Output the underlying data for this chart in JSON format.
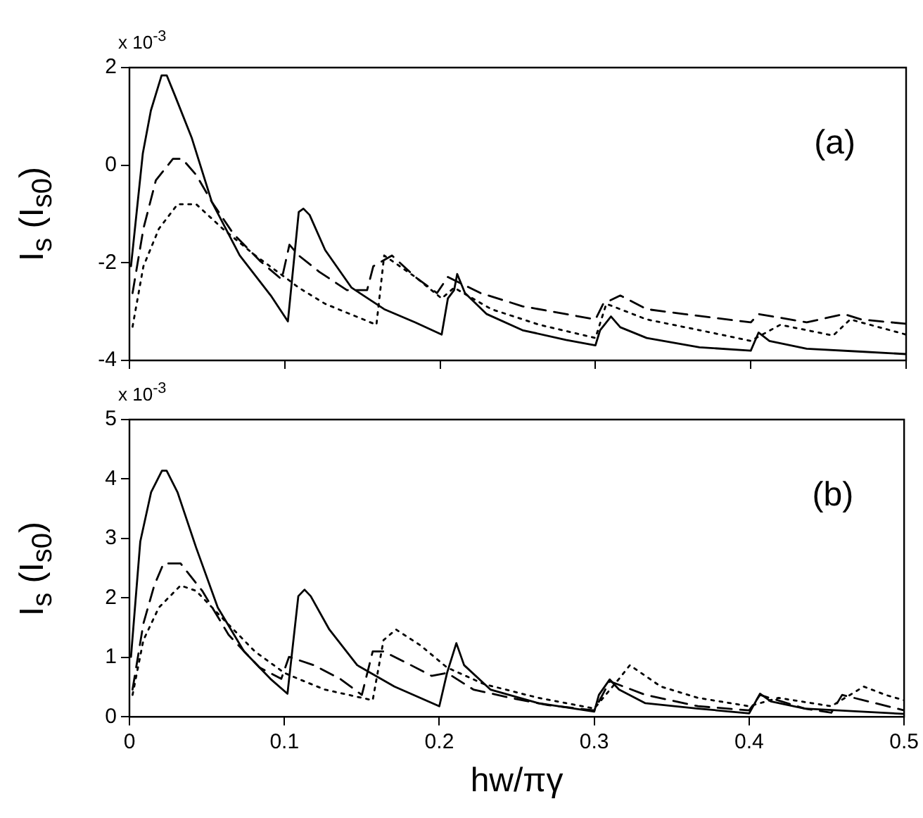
{
  "chart_data": [
    {
      "type": "line",
      "ylabel": "I$_{s}$ (I$_{s0}$)",
      "annotations": [
        "x 10$^{-3}$",
        "(a)"
      ],
      "xlim": [
        0,
        0.5
      ],
      "xticks": [
        0,
        0.1,
        0.2,
        0.3,
        0.4,
        0.5
      ],
      "ylim": [
        -4,
        2
      ],
      "yticks": [
        -4,
        -2,
        0,
        2
      ],
      "tick_labels": "y",
      "grid": false,
      "legend": false,
      "series": [
        {
          "color": "#000000",
          "line_style": "solid",
          "x": [
            0.001,
            0.0086,
            0.0138,
            0.0207,
            0.024,
            0.029,
            0.04,
            0.053,
            0.071,
            0.091,
            0.102,
            0.109,
            0.112,
            0.116,
            0.126,
            0.143,
            0.164,
            0.184,
            0.201,
            0.205,
            0.209,
            0.211,
            0.216,
            0.23,
            0.253,
            0.281,
            0.3,
            0.303,
            0.31,
            0.316,
            0.333,
            0.367,
            0.4,
            0.405,
            0.412,
            0.436,
            0.471,
            0.5
          ],
          "values": [
            -2.07,
            0.24,
            1.12,
            1.84,
            1.84,
            1.45,
            0.57,
            -0.75,
            -1.85,
            -2.67,
            -3.2,
            -0.96,
            -0.89,
            -1.02,
            -1.74,
            -2.51,
            -2.95,
            -3.22,
            -3.47,
            -2.73,
            -2.56,
            -2.23,
            -2.62,
            -3.05,
            -3.38,
            -3.58,
            -3.69,
            -3.38,
            -3.1,
            -3.32,
            -3.54,
            -3.73,
            -3.8,
            -3.43,
            -3.6,
            -3.76,
            -3.82,
            -3.87
          ]
        },
        {
          "color": "#000000",
          "line_style": "dashed",
          "x": [
            0.002,
            0.009,
            0.017,
            0.028,
            0.034,
            0.043,
            0.053,
            0.067,
            0.084,
            0.098,
            0.103,
            0.109,
            0.122,
            0.14,
            0.153,
            0.157,
            0.169,
            0.184,
            0.198,
            0.205,
            0.226,
            0.253,
            0.281,
            0.3,
            0.305,
            0.316,
            0.333,
            0.357,
            0.4,
            0.405,
            0.436,
            0.46,
            0.471,
            0.5
          ],
          "values": [
            -2.62,
            -1.3,
            -0.31,
            0.13,
            0.13,
            -0.2,
            -0.75,
            -1.41,
            -1.96,
            -2.34,
            -1.63,
            -1.85,
            -2.18,
            -2.56,
            -2.56,
            -2.07,
            -1.85,
            -2.29,
            -2.62,
            -2.29,
            -2.62,
            -2.89,
            -3.05,
            -3.16,
            -2.84,
            -2.67,
            -2.95,
            -3.05,
            -3.22,
            -3.05,
            -3.22,
            -3.05,
            -3.16,
            -3.25
          ]
        },
        {
          "color": "#000000",
          "line_style": "dotted",
          "x": [
            0.002,
            0.009,
            0.019,
            0.031,
            0.043,
            0.06,
            0.081,
            0.102,
            0.109,
            0.126,
            0.159,
            0.164,
            0.184,
            0.201,
            0.209,
            0.233,
            0.264,
            0.3,
            0.307,
            0.333,
            0.367,
            0.4,
            0.419,
            0.453,
            0.464,
            0.5
          ],
          "values": [
            -3.31,
            -2.07,
            -1.3,
            -0.8,
            -0.8,
            -1.3,
            -1.85,
            -2.34,
            -2.51,
            -2.84,
            -3.27,
            -1.85,
            -2.29,
            -2.73,
            -2.51,
            -2.95,
            -3.27,
            -3.54,
            -2.84,
            -3.16,
            -3.38,
            -3.6,
            -3.27,
            -3.49,
            -3.16,
            -3.47
          ]
        }
      ]
    },
    {
      "type": "line",
      "ylabel": "I$_{s}$ (I$_{s0}$)",
      "xlabel": "hw/πγ",
      "annotations": [
        "x 10$^{-3}$",
        "(b)"
      ],
      "xlim": [
        0,
        0.5
      ],
      "xticks": [
        0,
        0.1,
        0.2,
        0.3,
        0.4,
        0.5
      ],
      "ylim": [
        0,
        5
      ],
      "yticks": [
        0,
        1,
        2,
        3,
        4,
        5
      ],
      "grid": false,
      "legend": false,
      "series": [
        {
          "color": "#000000",
          "line_style": "solid",
          "x": [
            0.001,
            0.007,
            0.014,
            0.021,
            0.024,
            0.031,
            0.043,
            0.057,
            0.074,
            0.091,
            0.102,
            0.109,
            0.113,
            0.117,
            0.129,
            0.147,
            0.171,
            0.2,
            0.205,
            0.211,
            0.216,
            0.233,
            0.264,
            0.3,
            0.303,
            0.31,
            0.316,
            0.333,
            0.367,
            0.4,
            0.407,
            0.414,
            0.436,
            0.5
          ],
          "values": [
            1.01,
            2.95,
            3.78,
            4.14,
            4.14,
            3.78,
            2.85,
            1.84,
            1.1,
            0.64,
            0.39,
            2.03,
            2.14,
            2.03,
            1.47,
            0.87,
            0.51,
            0.18,
            0.74,
            1.24,
            0.87,
            0.46,
            0.23,
            0.09,
            0.37,
            0.63,
            0.46,
            0.23,
            0.14,
            0.06,
            0.39,
            0.26,
            0.14,
            0.05
          ]
        },
        {
          "color": "#000000",
          "line_style": "dashed",
          "x": [
            0.002,
            0.009,
            0.016,
            0.022,
            0.033,
            0.047,
            0.064,
            0.084,
            0.098,
            0.103,
            0.119,
            0.136,
            0.15,
            0.157,
            0.164,
            0.178,
            0.195,
            0.205,
            0.222,
            0.246,
            0.27,
            0.3,
            0.31,
            0.333,
            0.367,
            0.4,
            0.407,
            0.436,
            0.453,
            0.46,
            0.5
          ],
          "values": [
            0.46,
            1.57,
            2.21,
            2.58,
            2.58,
            2.12,
            1.38,
            0.83,
            0.64,
            1.01,
            0.87,
            0.64,
            0.37,
            1.1,
            1.1,
            0.92,
            0.69,
            0.74,
            0.46,
            0.32,
            0.2,
            0.11,
            0.6,
            0.37,
            0.18,
            0.11,
            0.37,
            0.14,
            0.07,
            0.37,
            0.11
          ]
        },
        {
          "color": "#000000",
          "line_style": "dotted",
          "x": [
            0.002,
            0.009,
            0.019,
            0.033,
            0.043,
            0.06,
            0.081,
            0.1,
            0.109,
            0.126,
            0.157,
            0.164,
            0.172,
            0.188,
            0.205,
            0.229,
            0.264,
            0.3,
            0.316,
            0.323,
            0.343,
            0.367,
            0.4,
            0.419,
            0.453,
            0.474,
            0.488,
            0.5
          ],
          "values": [
            0.37,
            1.29,
            1.84,
            2.21,
            2.12,
            1.66,
            1.1,
            0.74,
            0.64,
            0.46,
            0.28,
            1.29,
            1.47,
            1.2,
            0.83,
            0.55,
            0.32,
            0.14,
            0.64,
            0.87,
            0.51,
            0.32,
            0.18,
            0.32,
            0.18,
            0.51,
            0.37,
            0.28
          ]
        }
      ]
    }
  ]
}
